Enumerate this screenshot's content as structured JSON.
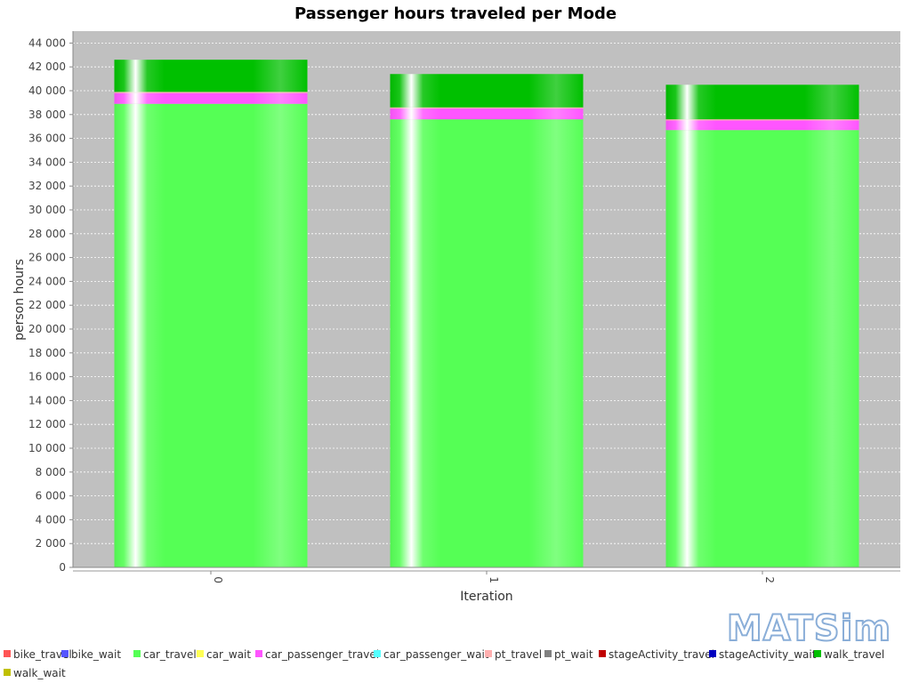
{
  "logo": {
    "text": "MATSim"
  },
  "chart_data": {
    "type": "bar",
    "stacked": true,
    "title": "Passenger hours traveled per Mode",
    "xlabel": "Iteration",
    "ylabel": "person hours",
    "ylim": [
      0,
      45000
    ],
    "ytick_step": 2000,
    "ytick_labels": [
      "0",
      "2 000",
      "4 000",
      "6 000",
      "8 000",
      "10 000",
      "12 000",
      "14 000",
      "16 000",
      "18 000",
      "20 000",
      "22 000",
      "24 000",
      "26 000",
      "28 000",
      "30 000",
      "32 000",
      "34 000",
      "36 000",
      "38 000",
      "40 000",
      "42 000",
      "44 000"
    ],
    "categories": [
      "0",
      "1",
      "2"
    ],
    "grid": true,
    "legend_placement": "bottom",
    "series": [
      {
        "name": "bike_travel",
        "color": "#ff5555",
        "values": [
          0,
          0,
          0
        ]
      },
      {
        "name": "bike_wait",
        "color": "#5555ff",
        "values": [
          0,
          0,
          0
        ]
      },
      {
        "name": "car_travel",
        "color": "#55ff55",
        "values": [
          38900,
          37600,
          36700
        ]
      },
      {
        "name": "car_wait",
        "color": "#ffff55",
        "values": [
          0,
          0,
          0
        ]
      },
      {
        "name": "car_passenger_travel",
        "color": "#ff55ff",
        "values": [
          900,
          900,
          800
        ]
      },
      {
        "name": "car_passenger_wait",
        "color": "#55ffff",
        "values": [
          0,
          0,
          0
        ]
      },
      {
        "name": "pt_travel",
        "color": "#ffafaf",
        "values": [
          100,
          100,
          100
        ]
      },
      {
        "name": "pt_wait",
        "color": "#808080",
        "values": [
          0,
          0,
          0
        ]
      },
      {
        "name": "stageActivity_travel",
        "color": "#c00000",
        "values": [
          0,
          0,
          0
        ]
      },
      {
        "name": "stageActivity_wait",
        "color": "#0000c0",
        "values": [
          0,
          0,
          0
        ]
      },
      {
        "name": "walk_travel",
        "color": "#00c000",
        "values": [
          2700,
          2800,
          2900
        ]
      },
      {
        "name": "walk_wait",
        "color": "#c0c000",
        "values": [
          0,
          0,
          0
        ]
      }
    ]
  }
}
